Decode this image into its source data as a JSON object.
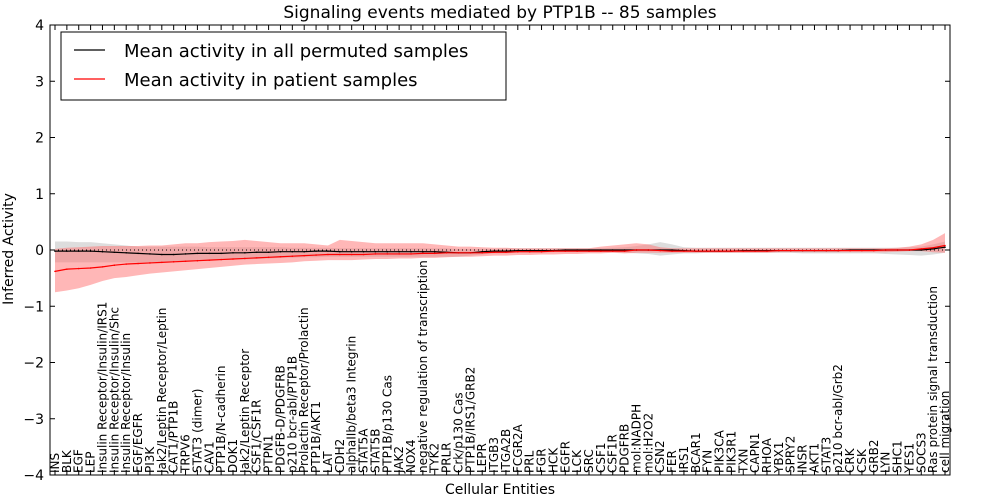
{
  "chart_data": {
    "type": "line",
    "title": "Signaling events mediated by PTP1B -- 85 samples",
    "xlabel": "Cellular Entities",
    "ylabel": "Inferred Activity",
    "ylim": [
      -4,
      4
    ],
    "yticks": [
      -4,
      -3,
      -2,
      -1,
      0,
      1,
      2,
      3,
      4
    ],
    "legend_position": "top-left",
    "categories": [
      "INS",
      "BLK",
      "EGF",
      "LEP",
      "Insulin Receptor/Insulin/IRS1",
      "Insulin Receptor/Insulin/Shc",
      "Insulin Receptor/Insulin",
      "EGF/EGFR",
      "PI3K",
      "Jak2/Leptin Receptor/Leptin",
      "CAT1/PTP1B",
      "TRPV6",
      "STAT3 (dimer)",
      "CAV1",
      "PTP1B/N-cadherin",
      "DOK1",
      "Jak2/Leptin Receptor",
      "CSF1/CSF1R",
      "PTPN1",
      "PDGFB-D/PDGFRB",
      "p210 bcr-abl/PTP1B",
      "Prolactin Receptor/Prolactin",
      "PTP1B/AKT1",
      "LAT",
      "CDH2",
      "alphaIIb/beta3 Integrin",
      "STAT5A",
      "STAT5B",
      "PTP1B/p130 Cas",
      "JAK2",
      "NOX4",
      "negative regulation of transcription",
      "TYK2",
      "PRLR",
      "Crk/p130 Cas",
      "PTP1B/IRS1/GRB2",
      "LEPR",
      "ITGB3",
      "ITGA2B",
      "FCGR2A",
      "PRL",
      "FGR",
      "HCK",
      "EGFR",
      "LCK",
      "SRC",
      "CSF1",
      "CSF1R",
      "PDGFRB",
      "mol:NADPH",
      "mol:H2O2",
      "CSN2",
      "FER",
      "IRS1",
      "BCAR1",
      "FYN",
      "PIK3CA",
      "PIK3R1",
      "TXN",
      "CAPN1",
      "RHOA",
      "YBX1",
      "SPRY2",
      "INSR",
      "AKT1",
      "STAT3",
      "p210 bcr-abl/Grb2",
      "CRK",
      "CSK",
      "GRB2",
      "LYN",
      "SHC1",
      "YES1",
      "SOCS3",
      "Ras protein signal transduction",
      "cell migration"
    ],
    "series": [
      {
        "name": "Mean activity in all permuted samples",
        "color": "#000000",
        "values": [
          -0.02,
          -0.02,
          -0.02,
          -0.02,
          -0.03,
          -0.04,
          -0.05,
          -0.06,
          -0.07,
          -0.08,
          -0.08,
          -0.07,
          -0.06,
          -0.06,
          -0.06,
          -0.05,
          -0.05,
          -0.04,
          -0.04,
          -0.03,
          -0.03,
          -0.03,
          -0.02,
          -0.02,
          -0.03,
          -0.03,
          -0.03,
          -0.03,
          -0.03,
          -0.03,
          -0.03,
          -0.03,
          -0.03,
          -0.04,
          -0.05,
          -0.05,
          -0.03,
          -0.02,
          -0.02,
          -0.01,
          -0.01,
          -0.01,
          -0.01,
          0.0,
          0.0,
          0.0,
          0.0,
          0.0,
          0.0,
          0.0,
          0.0,
          0.0,
          0.0,
          -0.01,
          -0.02,
          -0.02,
          -0.02,
          -0.02,
          -0.01,
          -0.01,
          -0.01,
          -0.01,
          -0.01,
          -0.01,
          -0.01,
          -0.01,
          -0.01,
          0.0,
          0.0,
          0.0,
          0.0,
          0.0,
          0.0,
          0.0,
          0.02,
          0.05
        ],
        "band_lower": [
          -0.22,
          -0.22,
          -0.22,
          -0.22,
          -0.22,
          -0.22,
          -0.22,
          -0.22,
          -0.22,
          -0.22,
          -0.21,
          -0.2,
          -0.19,
          -0.19,
          -0.18,
          -0.17,
          -0.17,
          -0.16,
          -0.15,
          -0.14,
          -0.14,
          -0.13,
          -0.13,
          -0.12,
          -0.12,
          -0.12,
          -0.12,
          -0.12,
          -0.12,
          -0.12,
          -0.12,
          -0.12,
          -0.12,
          -0.12,
          -0.12,
          -0.1,
          -0.08,
          -0.06,
          -0.06,
          -0.05,
          -0.05,
          -0.05,
          -0.04,
          -0.04,
          -0.04,
          -0.04,
          -0.04,
          -0.04,
          -0.05,
          -0.06,
          -0.07,
          -0.1,
          -0.08,
          -0.06,
          -0.06,
          -0.05,
          -0.05,
          -0.05,
          -0.05,
          -0.05,
          -0.05,
          -0.05,
          -0.05,
          -0.06,
          -0.06,
          -0.06,
          -0.06,
          -0.06,
          -0.06,
          -0.06,
          -0.07,
          -0.08,
          -0.09,
          -0.1,
          -0.08,
          -0.05
        ],
        "band_upper": [
          0.15,
          0.15,
          0.14,
          0.14,
          0.12,
          0.1,
          0.08,
          0.06,
          0.06,
          0.06,
          0.06,
          0.06,
          0.06,
          0.05,
          0.05,
          0.05,
          0.05,
          0.05,
          0.05,
          0.05,
          0.04,
          0.04,
          0.04,
          0.04,
          0.03,
          0.03,
          0.03,
          0.03,
          0.03,
          0.03,
          0.03,
          0.03,
          0.03,
          0.03,
          0.02,
          0.02,
          0.02,
          0.02,
          0.03,
          0.03,
          0.03,
          0.03,
          0.03,
          0.03,
          0.03,
          0.03,
          0.03,
          0.04,
          0.05,
          0.07,
          0.1,
          0.14,
          0.1,
          0.05,
          0.04,
          0.04,
          0.04,
          0.04,
          0.04,
          0.04,
          0.04,
          0.04,
          0.04,
          0.04,
          0.04,
          0.04,
          0.04,
          0.04,
          0.04,
          0.04,
          0.04,
          0.04,
          0.05,
          0.06,
          0.1,
          0.15
        ]
      },
      {
        "name": "Mean activity in patient samples",
        "color": "#ff0000",
        "values": [
          -0.38,
          -0.34,
          -0.33,
          -0.32,
          -0.3,
          -0.27,
          -0.25,
          -0.24,
          -0.23,
          -0.22,
          -0.21,
          -0.2,
          -0.19,
          -0.18,
          -0.17,
          -0.16,
          -0.15,
          -0.14,
          -0.13,
          -0.12,
          -0.11,
          -0.1,
          -0.09,
          -0.08,
          -0.08,
          -0.08,
          -0.08,
          -0.07,
          -0.07,
          -0.07,
          -0.07,
          -0.06,
          -0.06,
          -0.05,
          -0.05,
          -0.05,
          -0.05,
          -0.04,
          -0.04,
          -0.03,
          -0.03,
          -0.03,
          -0.02,
          -0.02,
          -0.02,
          -0.02,
          -0.02,
          -0.02,
          -0.02,
          0.0,
          0.0,
          -0.01,
          -0.02,
          -0.02,
          -0.02,
          -0.02,
          -0.02,
          -0.02,
          -0.02,
          -0.02,
          -0.02,
          -0.01,
          -0.01,
          -0.01,
          -0.01,
          -0.01,
          -0.01,
          -0.01,
          -0.01,
          -0.01,
          0.0,
          0.0,
          0.0,
          0.02,
          0.04,
          0.08
        ],
        "band_lower": [
          -0.75,
          -0.72,
          -0.68,
          -0.62,
          -0.55,
          -0.5,
          -0.48,
          -0.45,
          -0.42,
          -0.4,
          -0.38,
          -0.36,
          -0.34,
          -0.32,
          -0.3,
          -0.28,
          -0.26,
          -0.25,
          -0.24,
          -0.23,
          -0.22,
          -0.2,
          -0.19,
          -0.18,
          -0.18,
          -0.18,
          -0.17,
          -0.16,
          -0.16,
          -0.15,
          -0.15,
          -0.14,
          -0.14,
          -0.13,
          -0.12,
          -0.12,
          -0.11,
          -0.1,
          -0.1,
          -0.09,
          -0.09,
          -0.08,
          -0.08,
          -0.07,
          -0.07,
          -0.06,
          -0.06,
          -0.05,
          -0.06,
          -0.05,
          -0.05,
          -0.05,
          -0.05,
          -0.05,
          -0.05,
          -0.05,
          -0.05,
          -0.05,
          -0.05,
          -0.05,
          -0.05,
          -0.04,
          -0.04,
          -0.04,
          -0.04,
          -0.04,
          -0.04,
          -0.04,
          -0.04,
          -0.04,
          -0.04,
          -0.03,
          -0.02,
          -0.02,
          -0.04,
          -0.05
        ],
        "band_upper": [
          0.02,
          0.04,
          0.05,
          0.06,
          0.07,
          0.07,
          0.07,
          0.07,
          0.08,
          0.08,
          0.1,
          0.12,
          0.12,
          0.14,
          0.15,
          0.16,
          0.18,
          0.16,
          0.14,
          0.12,
          0.12,
          0.12,
          0.1,
          0.08,
          0.18,
          0.16,
          0.14,
          0.12,
          0.12,
          0.12,
          0.12,
          0.12,
          0.1,
          0.08,
          0.06,
          0.06,
          0.05,
          0.04,
          0.04,
          0.03,
          0.03,
          0.03,
          0.03,
          0.03,
          0.03,
          0.03,
          0.06,
          0.08,
          0.1,
          0.12,
          0.1,
          0.05,
          0.03,
          0.03,
          0.03,
          0.03,
          0.03,
          0.03,
          0.03,
          0.03,
          0.03,
          0.03,
          0.03,
          0.03,
          0.03,
          0.03,
          0.03,
          0.03,
          0.03,
          0.03,
          0.03,
          0.04,
          0.06,
          0.1,
          0.18,
          0.3
        ]
      }
    ],
    "reference_line": 0
  }
}
